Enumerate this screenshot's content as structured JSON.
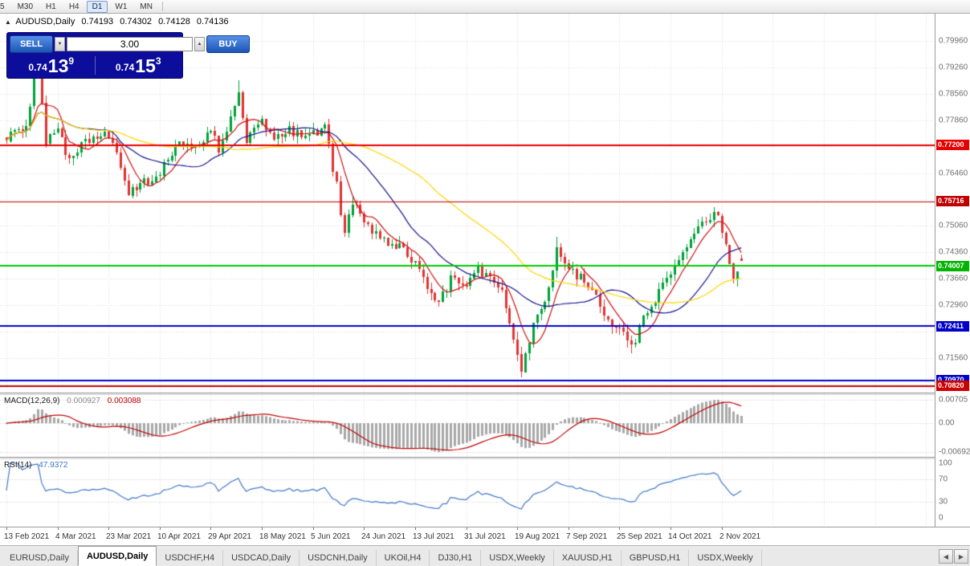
{
  "toolbar": {
    "timeframes": [
      "5",
      "M30",
      "H1",
      "H4",
      "D1",
      "W1",
      "MN"
    ],
    "active": "D1"
  },
  "title_bar": {
    "collapse_icon": "▲",
    "symbol": "AUDUSD,Daily",
    "open": "0.74193",
    "high": "0.74302",
    "low": "0.74128",
    "close": "0.74136"
  },
  "trade_panel": {
    "sell_label": "SELL",
    "buy_label": "BUY",
    "volume": "3.00",
    "sell_price": {
      "prefix": "0.74",
      "pips": "13",
      "pipette": "9"
    },
    "buy_price": {
      "prefix": "0.74",
      "pips": "15",
      "pipette": "3"
    },
    "panel_bg": "#0d0d9b",
    "button_bg": "#1d55b4"
  },
  "chart_data": {
    "type": "candlestick",
    "symbol": "AUDUSD",
    "timeframe": "Daily",
    "x_labels": [
      "13 Feb 2021",
      "4 Mar 2021",
      "23 Mar 2021",
      "10 Apr 2021",
      "29 Apr 2021",
      "18 May 2021",
      "5 Jun 2021",
      "24 Jun 2021",
      "13 Jul 2021",
      "31 Jul 2021",
      "19 Aug 2021",
      "7 Sep 2021",
      "25 Sep 2021",
      "14 Oct 2021",
      "2 Nov 2021"
    ],
    "candles_per_label": 13,
    "main": {
      "price_min": 0.7069,
      "price_max": 0.8062,
      "count": 188,
      "noise": 0.0026,
      "wick": 0.002,
      "waypoints": [
        [
          0,
          0.774
        ],
        [
          5,
          0.7772
        ],
        [
          8,
          0.796
        ],
        [
          10,
          0.773
        ],
        [
          13,
          0.7775
        ],
        [
          15,
          0.7685
        ],
        [
          20,
          0.773
        ],
        [
          25,
          0.7755
        ],
        [
          28,
          0.7712
        ],
        [
          31,
          0.759
        ],
        [
          35,
          0.762
        ],
        [
          39,
          0.765
        ],
        [
          44,
          0.773
        ],
        [
          48,
          0.771
        ],
        [
          52,
          0.777
        ],
        [
          54,
          0.7712
        ],
        [
          59,
          0.785
        ],
        [
          61,
          0.7732
        ],
        [
          65,
          0.7785
        ],
        [
          68,
          0.7745
        ],
        [
          72,
          0.776
        ],
        [
          76,
          0.774
        ],
        [
          81,
          0.7765
        ],
        [
          84,
          0.7612
        ],
        [
          86,
          0.7482
        ],
        [
          88,
          0.7568
        ],
        [
          91,
          0.7515
        ],
        [
          95,
          0.747
        ],
        [
          100,
          0.745
        ],
        [
          104,
          0.741
        ],
        [
          108,
          0.7322
        ],
        [
          110,
          0.73
        ],
        [
          113,
          0.7365
        ],
        [
          117,
          0.7345
        ],
        [
          120,
          0.7396
        ],
        [
          123,
          0.736
        ],
        [
          126,
          0.734
        ],
        [
          128,
          0.7256
        ],
        [
          130,
          0.7158
        ],
        [
          131,
          0.7132
        ],
        [
          134,
          0.7242
        ],
        [
          137,
          0.73
        ],
        [
          140,
          0.745
        ],
        [
          143,
          0.7392
        ],
        [
          146,
          0.7366
        ],
        [
          150,
          0.732
        ],
        [
          153,
          0.7246
        ],
        [
          156,
          0.7242
        ],
        [
          159,
          0.718
        ],
        [
          162,
          0.7262
        ],
        [
          165,
          0.7312
        ],
        [
          169,
          0.738
        ],
        [
          172,
          0.7432
        ],
        [
          175,
          0.7482
        ],
        [
          178,
          0.752
        ],
        [
          180,
          0.7542
        ],
        [
          182,
          0.75
        ],
        [
          184,
          0.7402
        ],
        [
          185,
          0.7372
        ],
        [
          186,
          0.7386
        ],
        [
          187,
          0.74136
        ]
      ],
      "extremes": [
        [
          8,
          "h",
          0.7995
        ],
        [
          59,
          "h",
          0.7891
        ],
        [
          131,
          "l",
          0.7106
        ],
        [
          140,
          "h",
          0.7478
        ],
        [
          159,
          "l",
          0.717
        ]
      ],
      "last": {
        "o": 0.74193,
        "h": 0.74302,
        "l": 0.74128,
        "c": 0.74136
      },
      "up_color": "#00a13a",
      "down_color": "#e03232",
      "moving_averages": [
        {
          "period": 7,
          "color": "#cc1111"
        },
        {
          "period": 21,
          "color": "#10108c"
        },
        {
          "period": 50,
          "color": "#ffd400"
        }
      ],
      "price_ticks": [
        "0.79960",
        "0.79260",
        "0.78560",
        "0.77860",
        "0.77160",
        "0.76460",
        "0.75760",
        "0.75060",
        "0.74360",
        "0.73660",
        "0.72960",
        "0.72260",
        "0.71560",
        "0.70860"
      ],
      "hlines": [
        {
          "price": 0.772,
          "color": "#e60000",
          "width": 2,
          "badge": "0.77200",
          "badge_bg": "#e60000"
        },
        {
          "price": 0.75716,
          "color": "#c00000",
          "width": 1,
          "badge": "0.75716",
          "badge_bg": "#c00000"
        },
        {
          "price": 0.74007,
          "color": "#00cc00",
          "width": 2,
          "badge": "0.74007",
          "badge_bg": "#00b400"
        },
        {
          "price": 0.72411,
          "color": "#0000cc",
          "width": 2,
          "badge": "0.72411",
          "badge_bg": "#0000c8"
        },
        {
          "price": 0.7097,
          "color": "#0000cc",
          "width": 2,
          "badge": "0.70970",
          "badge_bg": "#0000c8"
        },
        {
          "price": 0.7082,
          "color": "#cc0000",
          "width": 2,
          "badge": "0.70820",
          "badge_bg": "#cc0000"
        }
      ]
    },
    "macd": {
      "label": "MACD(12,26,9)",
      "value_main": "0.000927",
      "value_signal": "0.003088",
      "fast": 12,
      "slow": 26,
      "signal": 9,
      "axis_labels": {
        "top": "0.00705",
        "zero": "0.00",
        "bottom": "-0.00692"
      },
      "hist_color": "#a8a8a8",
      "signal_color": "#c00000"
    },
    "rsi": {
      "label": "RSI(14)",
      "value": "47.9372",
      "period": 14,
      "levels": [
        100,
        70,
        30,
        0
      ],
      "line_color": "#3f76c8"
    }
  },
  "tabs": {
    "items": [
      "EURUSD,Daily",
      "AUDUSD,Daily",
      "USDCHF,H4",
      "USDCAD,Daily",
      "USDCNH,Daily",
      "UKOil,H4",
      "DJ30,H1",
      "USDX,Weekly",
      "XAUUSD,H1",
      "GBPUSD,H1",
      "USDX,Weekly"
    ],
    "active_index": 1,
    "scroll_left_icon": "◀",
    "scroll_right_icon": "▶"
  }
}
